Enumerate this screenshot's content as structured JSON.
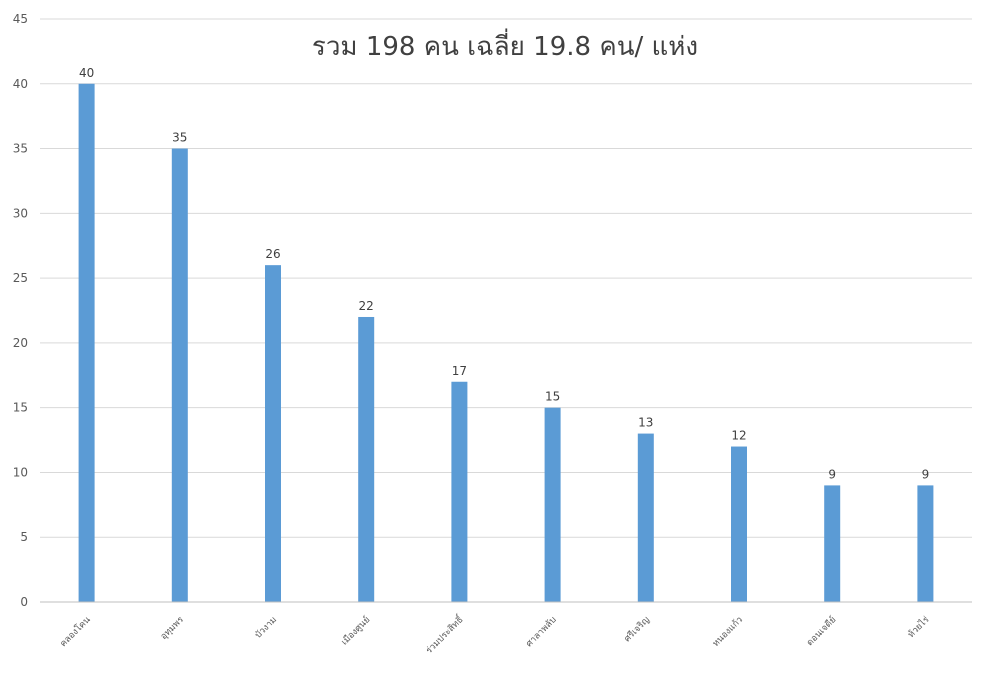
{
  "chart_data": {
    "type": "bar",
    "title": "รวม 198 คน เฉลี่ย 19.8 คน/ แห่ง",
    "categories": [
      "คลองโคน",
      "อุทุมพร",
      "บัวงาม",
      "เมืองศูนย์",
      "ร่วมประสิทธิ์",
      "ศาลาพลับ",
      "ศรีเจริญ",
      "หนองแก้ว",
      "ดอนเจดีย์",
      "ห้วยไร่"
    ],
    "values": [
      40,
      35,
      26,
      22,
      17,
      15,
      13,
      12,
      9,
      9
    ],
    "yticks": [
      0,
      5,
      10,
      15,
      20,
      25,
      30,
      35,
      40,
      45
    ],
    "ylim": [
      0,
      45
    ],
    "grid": true,
    "legend": "none",
    "bar_color": "#5b9bd5"
  }
}
